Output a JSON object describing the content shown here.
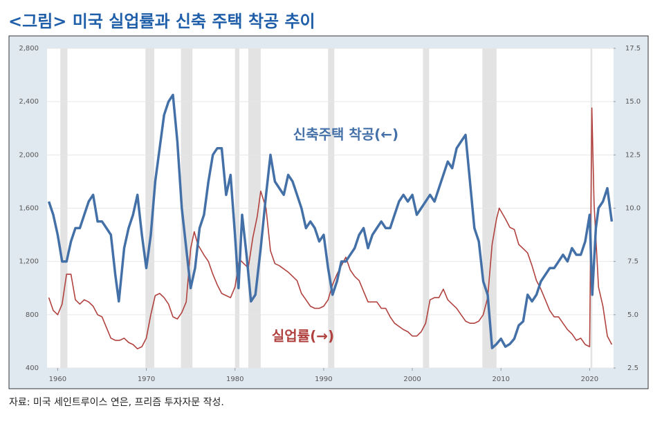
{
  "chart_data": {
    "type": "line",
    "title": "<그림> 미국 실업률과 신축 주택 착공 추이",
    "source": "자료: 미국 세인트루이스 연은, 프리즘 투자자문 작성.",
    "xlim": [
      1958.8,
      2022.7
    ],
    "xticks": [
      1960,
      1970,
      1980,
      1990,
      2000,
      2010,
      2020
    ],
    "ylim": [
      400,
      2800
    ],
    "yticks": [
      400,
      800,
      {
        "value": 1200,
        "label": "1,200"
      },
      {
        "value": 1600,
        "label": "1,600"
      },
      {
        "value": 2000,
        "label": "2,000"
      },
      {
        "value": 2400,
        "label": "2,400"
      },
      {
        "value": 2800,
        "label": "2,800"
      }
    ],
    "y2lim": [
      2.5,
      17.5
    ],
    "y2ticks": [
      2.5,
      {
        "value": 5,
        "label": "5.0"
      },
      7.5,
      {
        "value": 10,
        "label": "10.0"
      },
      12.5,
      {
        "value": 15,
        "label": "15.0"
      },
      17.5
    ],
    "grid": true,
    "shaded_periods": [
      [
        1960.3,
        1961.1
      ],
      [
        1969.9,
        1970.9
      ],
      [
        1973.9,
        1975.2
      ],
      [
        1980.0,
        1980.5
      ],
      [
        1981.5,
        1982.9
      ],
      [
        1990.5,
        1991.2
      ],
      [
        2001.2,
        2001.9
      ],
      [
        2007.9,
        2009.5
      ],
      [
        2020.1,
        2020.3
      ]
    ],
    "series": [
      {
        "name": "신축주택 착공(←)",
        "color": "#4470a8",
        "axis": "y",
        "x": [
          1959,
          1959.5,
          1960,
          1960.5,
          1961,
          1961.5,
          1962,
          1962.5,
          1963,
          1963.5,
          1964,
          1964.5,
          1965,
          1965.5,
          1966,
          1966.5,
          1966.9,
          1967.5,
          1968,
          1968.5,
          1969,
          1969.5,
          1970,
          1970.5,
          1971,
          1971.5,
          1972,
          1972.5,
          1973,
          1973.5,
          1974,
          1974.5,
          1975,
          1975.5,
          1976,
          1976.5,
          1977,
          1977.5,
          1978,
          1978.5,
          1979,
          1979.5,
          1980,
          1980.4,
          1980.8,
          1981.3,
          1981.8,
          1982.3,
          1982.9,
          1983.5,
          1984,
          1984.5,
          1985,
          1985.5,
          1986,
          1986.5,
          1987,
          1987.5,
          1988,
          1988.5,
          1989,
          1989.5,
          1990,
          1990.5,
          1991,
          1991.5,
          1992,
          1992.5,
          1993,
          1993.5,
          1994,
          1994.5,
          1995,
          1995.5,
          1996,
          1996.5,
          1997,
          1997.5,
          1998,
          1998.5,
          1999,
          1999.5,
          2000,
          2000.5,
          2001,
          2001.5,
          2002,
          2002.5,
          2003,
          2003.5,
          2004,
          2004.5,
          2005,
          2005.5,
          2006,
          2006.5,
          2007,
          2007.5,
          2008,
          2008.5,
          2009,
          2009.5,
          2010,
          2010.5,
          2011,
          2011.5,
          2012,
          2012.5,
          2013,
          2013.5,
          2014,
          2014.5,
          2015,
          2015.5,
          2016,
          2016.5,
          2017,
          2017.5,
          2018,
          2018.5,
          2019,
          2019.5,
          2020,
          2020.3,
          2020.7,
          2021,
          2021.5,
          2022,
          2022.5
        ],
        "values": [
          1650,
          1550,
          1400,
          1200,
          1200,
          1350,
          1450,
          1450,
          1550,
          1650,
          1700,
          1500,
          1500,
          1450,
          1400,
          1100,
          900,
          1300,
          1450,
          1550,
          1700,
          1400,
          1150,
          1400,
          1800,
          2050,
          2300,
          2400,
          2450,
          2100,
          1600,
          1300,
          1000,
          1150,
          1450,
          1550,
          1800,
          2000,
          2050,
          2050,
          1700,
          1850,
          1400,
          1000,
          1550,
          1250,
          900,
          950,
          1300,
          1700,
          2000,
          1800,
          1750,
          1700,
          1850,
          1800,
          1700,
          1600,
          1450,
          1500,
          1450,
          1350,
          1400,
          1150,
          950,
          1050,
          1200,
          1200,
          1250,
          1300,
          1400,
          1450,
          1300,
          1400,
          1450,
          1500,
          1450,
          1450,
          1550,
          1650,
          1700,
          1650,
          1700,
          1550,
          1600,
          1650,
          1700,
          1650,
          1750,
          1850,
          1950,
          1900,
          2050,
          2100,
          2150,
          1800,
          1450,
          1350,
          1050,
          950,
          550,
          580,
          620,
          560,
          580,
          620,
          720,
          750,
          950,
          900,
          950,
          1050,
          1100,
          1150,
          1150,
          1200,
          1250,
          1200,
          1300,
          1250,
          1250,
          1350,
          1550,
          950,
          1450,
          1600,
          1650,
          1750,
          1500
        ]
      },
      {
        "name": "실업률(→)",
        "color": "#b0413e",
        "axis": "y2",
        "x": [
          1959,
          1959.5,
          1960,
          1960.5,
          1961,
          1961.5,
          1962,
          1962.5,
          1963,
          1963.5,
          1964,
          1964.5,
          1965,
          1965.5,
          1966,
          1966.5,
          1967,
          1967.5,
          1968,
          1968.5,
          1969,
          1969.5,
          1970,
          1970.5,
          1971,
          1971.5,
          1972,
          1972.5,
          1973,
          1973.5,
          1974,
          1974.5,
          1975,
          1975.4,
          1975.8,
          1976.5,
          1977,
          1977.5,
          1978,
          1978.5,
          1979,
          1979.5,
          1980,
          1980.5,
          1981,
          1981.5,
          1982,
          1982.5,
          1982.9,
          1983.5,
          1984,
          1984.5,
          1985,
          1986,
          1987,
          1987.5,
          1988,
          1988.5,
          1989,
          1989.5,
          1990,
          1990.5,
          1991,
          1991.5,
          1992,
          1992.5,
          1993,
          1993.5,
          1994,
          1994.5,
          1995,
          1996,
          1996.5,
          1997,
          1997.5,
          1998,
          1999,
          1999.5,
          2000,
          2000.5,
          2001,
          2001.5,
          2002,
          2002.5,
          2003,
          2003.5,
          2004,
          2004.5,
          2005,
          2005.5,
          2006,
          2006.5,
          2007,
          2007.5,
          2008,
          2008.5,
          2009,
          2009.5,
          2009.8,
          2010.5,
          2011,
          2011.5,
          2012,
          2012.5,
          2013,
          2013.5,
          2014,
          2014.5,
          2015,
          2015.5,
          2016,
          2016.5,
          2017,
          2017.5,
          2018,
          2018.5,
          2019,
          2019.5,
          2020,
          2020.25,
          2020.5,
          2021,
          2021.5,
          2022,
          2022.5
        ],
        "values": [
          5.8,
          5.2,
          5.0,
          5.5,
          6.9,
          6.9,
          5.7,
          5.5,
          5.7,
          5.6,
          5.4,
          5.0,
          4.9,
          4.4,
          3.9,
          3.8,
          3.8,
          3.9,
          3.7,
          3.6,
          3.4,
          3.5,
          3.9,
          5.0,
          5.9,
          6.0,
          5.8,
          5.5,
          4.9,
          4.8,
          5.1,
          5.6,
          8.1,
          8.9,
          8.3,
          7.8,
          7.5,
          6.9,
          6.4,
          6.0,
          5.9,
          5.8,
          6.3,
          7.6,
          7.4,
          7.2,
          8.6,
          9.6,
          10.8,
          10.0,
          8.0,
          7.4,
          7.3,
          7.0,
          6.6,
          6.0,
          5.7,
          5.4,
          5.3,
          5.3,
          5.4,
          5.7,
          6.4,
          6.9,
          7.3,
          7.7,
          7.1,
          6.8,
          6.6,
          6.1,
          5.6,
          5.6,
          5.3,
          5.3,
          4.9,
          4.6,
          4.3,
          4.2,
          4.0,
          4.0,
          4.2,
          4.6,
          5.7,
          5.8,
          5.8,
          6.2,
          5.7,
          5.5,
          5.3,
          5.0,
          4.7,
          4.6,
          4.6,
          4.7,
          5.0,
          5.8,
          8.3,
          9.5,
          10.0,
          9.5,
          9.1,
          9.0,
          8.3,
          8.1,
          7.9,
          7.3,
          6.6,
          6.2,
          5.7,
          5.2,
          4.9,
          4.9,
          4.6,
          4.3,
          4.1,
          3.8,
          3.9,
          3.6,
          3.5,
          14.7,
          10.2,
          6.3,
          5.4,
          4.0,
          3.6
        ]
      }
    ]
  }
}
